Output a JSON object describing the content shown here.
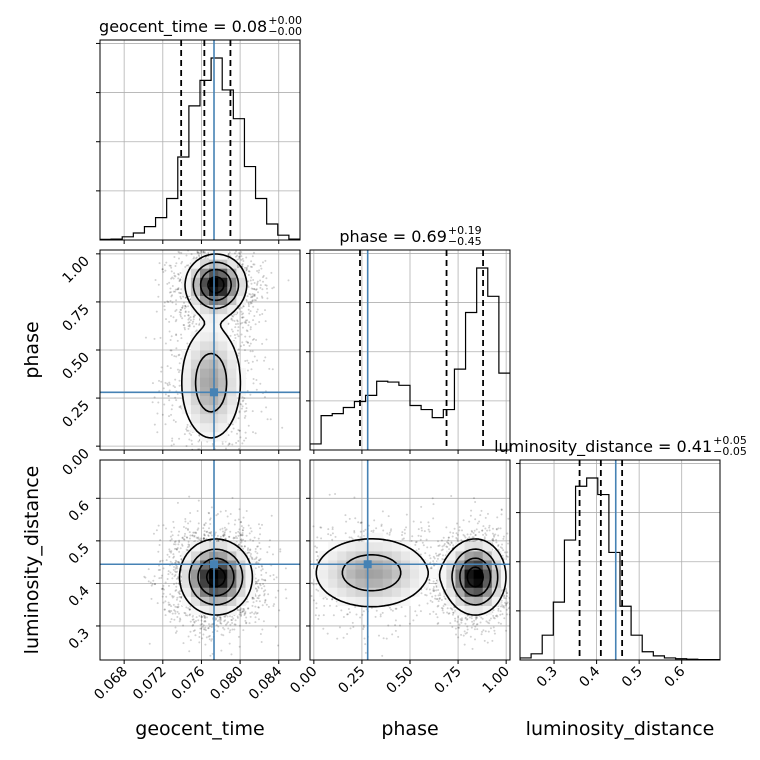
{
  "chart_data": {
    "type": "corner",
    "truth_color": "#4682b4",
    "parameters": [
      "geocent_time",
      "phase",
      "luminosity_distance"
    ],
    "truths": {
      "geocent_time": 0.0773,
      "phase": 0.28,
      "luminosity_distance": 0.445
    },
    "axes": {
      "geocent_time": {
        "label": "geocent_time",
        "range": [
          0.0655,
          0.0862
        ],
        "ticks": [
          "0.068",
          "0.072",
          "0.076",
          "0.080",
          "0.084"
        ]
      },
      "phase": {
        "label": "phase",
        "range": [
          -0.02,
          1.02
        ],
        "ticks": [
          "0.00",
          "0.25",
          "0.50",
          "0.75",
          "1.00"
        ]
      },
      "luminosity_distance": {
        "label": "luminosity_distance",
        "range": [
          0.22,
          0.69
        ],
        "ticks": [
          "0.3",
          "0.4",
          "0.5",
          "0.6"
        ]
      }
    },
    "titles": [
      {
        "main": "geocent_time = 0.08",
        "sup": "+0.00",
        "sub": "−0.00"
      },
      {
        "main": "phase = 0.69",
        "sup": "+0.19",
        "sub": "−0.45"
      },
      {
        "main": "luminosity_distance = 0.41",
        "sup": "+0.05",
        "sub": "−0.05"
      }
    ],
    "histograms": {
      "geocent_time": {
        "bins": [
          0.0655,
          0.06665,
          0.0678,
          0.06895,
          0.0701,
          0.07125,
          0.0724,
          0.07355,
          0.0747,
          0.07585,
          0.077,
          0.07815,
          0.0793,
          0.08045,
          0.0816,
          0.08275,
          0.0839,
          0.08505,
          0.0862
        ],
        "counts": [
          0.2,
          0.3,
          1.0,
          2.2,
          4.2,
          7.0,
          13.0,
          26.0,
          42.0,
          50.0,
          57.0,
          47.0,
          38.0,
          23.0,
          13.0,
          5.0,
          1.5,
          0.3
        ],
        "quantiles": [
          0.0739,
          0.0763,
          0.079
        ]
      },
      "phase": {
        "bins": [
          -0.02,
          0.0378,
          0.0956,
          0.1533,
          0.2111,
          0.2689,
          0.3267,
          0.3844,
          0.4422,
          0.5,
          0.5578,
          0.6156,
          0.6733,
          0.7311,
          0.7889,
          0.8467,
          0.9044,
          0.9622,
          1.02
        ],
        "counts": [
          1.5,
          8.5,
          9.0,
          10.5,
          12.0,
          13.5,
          17.0,
          16.8,
          16.0,
          11.0,
          10.0,
          8.0,
          10.0,
          20.0,
          34.0,
          45.0,
          38.0,
          19.0
        ],
        "quantiles": [
          0.24,
          0.69,
          0.88
        ]
      },
      "luminosity_distance": {
        "bins": [
          0.22,
          0.2461,
          0.2722,
          0.2983,
          0.3244,
          0.3506,
          0.3767,
          0.4028,
          0.4289,
          0.455,
          0.4811,
          0.5072,
          0.5333,
          0.5594,
          0.5856,
          0.6117,
          0.6378,
          0.6639,
          0.69
        ],
        "counts": [
          0.5,
          1.5,
          6.0,
          14.0,
          29.0,
          42.0,
          44.0,
          40.0,
          26.0,
          13.0,
          6.0,
          2.0,
          1.0,
          0.5,
          0.3,
          0.2,
          0.1,
          0.1
        ],
        "quantiles": [
          0.36,
          0.41,
          0.46
        ]
      }
    },
    "densities": [
      {
        "x": "geocent_time",
        "y": "phase",
        "modes": [
          {
            "cx": 0.0775,
            "cy": 0.84,
            "sx": 0.0016,
            "sy": 0.08,
            "w": 1.0
          },
          {
            "cx": 0.077,
            "cy": 0.33,
            "sx": 0.0019,
            "sy": 0.18,
            "w": 0.5
          }
        ]
      },
      {
        "x": "geocent_time",
        "y": "luminosity_distance",
        "modes": [
          {
            "cx": 0.0775,
            "cy": 0.415,
            "sx": 0.0019,
            "sy": 0.045,
            "w": 1.0
          }
        ]
      },
      {
        "x": "phase",
        "y": "luminosity_distance",
        "modes": [
          {
            "cx": 0.84,
            "cy": 0.415,
            "sx": 0.08,
            "sy": 0.045,
            "w": 1.0
          },
          {
            "cx": 0.3,
            "cy": 0.425,
            "sx": 0.18,
            "sy": 0.05,
            "w": 0.5
          }
        ]
      }
    ]
  }
}
